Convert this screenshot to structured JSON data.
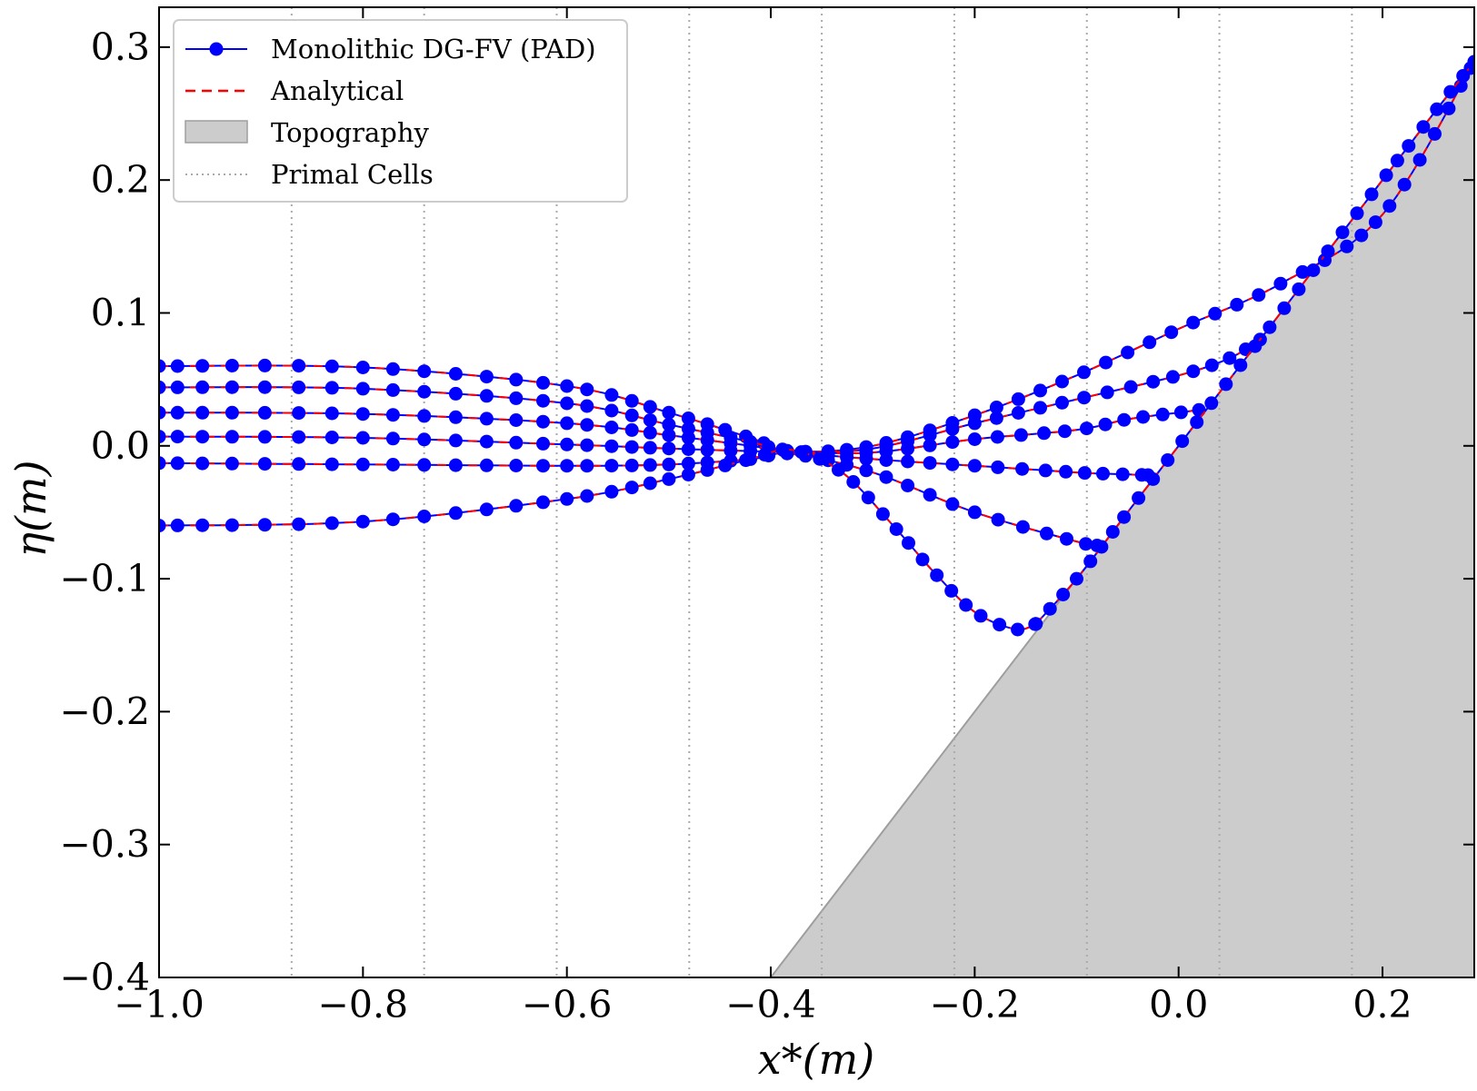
{
  "chart_data": {
    "type": "line",
    "xlabel": "x*(m)",
    "ylabel": "η(m)",
    "xlim": [
      -1.0,
      0.29
    ],
    "ylim": [
      -0.4,
      0.33
    ],
    "x_ticks": [
      -1.0,
      -0.8,
      -0.6,
      -0.4,
      -0.2,
      0.0,
      0.2
    ],
    "x_tick_labels": [
      "−1.0",
      "−0.8",
      "−0.6",
      "−0.4",
      "−0.2",
      "0.0",
      "0.2"
    ],
    "y_ticks": [
      -0.4,
      -0.3,
      -0.2,
      -0.1,
      0.0,
      0.1,
      0.2,
      0.3
    ],
    "y_tick_labels": [
      "−0.4",
      "−0.3",
      "−0.2",
      "−0.1",
      "0.0",
      "0.1",
      "0.2",
      "0.3"
    ],
    "legend": {
      "placement": "top-left",
      "entries": [
        {
          "label": "Monolithic DG-FV (PAD)",
          "style": "line-marker",
          "color": "#0000ff"
        },
        {
          "label": "Analytical",
          "style": "dashed",
          "color": "#ff0000"
        },
        {
          "label": "Topography",
          "style": "patch",
          "color": "#cccccc"
        },
        {
          "label": "Primal Cells",
          "style": "dotted",
          "color": "#aaaaaa"
        }
      ]
    },
    "primal_cells_x": [
      -0.87,
      -0.74,
      -0.61,
      -0.48,
      -0.35,
      -0.22,
      -0.09,
      0.04,
      0.17
    ],
    "topography": {
      "x": [
        -0.4,
        0.29
      ],
      "y": [
        -0.4,
        0.29
      ]
    },
    "series": [
      {
        "x": [
          -1.0,
          -0.8,
          -0.6,
          -0.5,
          -0.42,
          -0.38,
          -0.3,
          -0.2,
          -0.1,
          0.0,
          0.1,
          0.2,
          0.29
        ],
        "y": [
          0.06,
          0.059,
          0.045,
          0.025,
          0.006,
          -0.004,
          0.0,
          0.023,
          0.053,
          0.088,
          0.122,
          0.174,
          0.289
        ]
      },
      {
        "x": [
          -1.0,
          -0.8,
          -0.6,
          -0.5,
          -0.42,
          -0.38,
          -0.3,
          -0.2,
          -0.1,
          0.0,
          0.05,
          0.08
        ],
        "y": [
          0.044,
          0.043,
          0.032,
          0.016,
          0.003,
          -0.004,
          -0.002,
          0.017,
          0.035,
          0.053,
          0.066,
          0.08
        ]
      },
      {
        "x": [
          -1.0,
          -0.8,
          -0.6,
          -0.5,
          -0.42,
          -0.38,
          -0.3,
          -0.2,
          -0.1,
          -0.05,
          0.0,
          0.02
        ],
        "y": [
          0.025,
          0.024,
          0.017,
          0.008,
          0.0,
          -0.004,
          -0.005,
          0.005,
          0.012,
          0.02,
          0.025,
          0.027
        ]
      },
      {
        "x": [
          -1.0,
          -0.8,
          -0.6,
          -0.5,
          -0.42,
          -0.38,
          -0.3,
          -0.2,
          -0.1,
          -0.07,
          -0.03
        ],
        "y": [
          0.007,
          0.006,
          0.001,
          -0.002,
          -0.004,
          -0.005,
          -0.01,
          -0.015,
          -0.02,
          -0.021,
          -0.022
        ]
      },
      {
        "x": [
          -1.0,
          -0.8,
          -0.6,
          -0.5,
          -0.42,
          -0.38,
          -0.3,
          -0.2,
          -0.1,
          -0.085,
          -0.08
        ],
        "y": [
          -0.013,
          -0.014,
          -0.015,
          -0.014,
          -0.01,
          -0.006,
          -0.02,
          -0.05,
          -0.072,
          -0.074,
          -0.075
        ]
      },
      {
        "x": [
          -1.0,
          -0.8,
          -0.6,
          -0.5,
          -0.42,
          -0.38,
          -0.33,
          -0.28,
          -0.24,
          -0.2,
          -0.16,
          -0.14
        ],
        "y": [
          -0.06,
          -0.057,
          -0.04,
          -0.025,
          -0.01,
          -0.003,
          -0.02,
          -0.06,
          -0.095,
          -0.125,
          -0.138,
          -0.134
        ]
      },
      {
        "x": [
          -0.14,
          -0.1,
          -0.05,
          0.0,
          0.05,
          0.1,
          0.15,
          0.2,
          0.25,
          0.29
        ],
        "y": [
          -0.134,
          -0.1,
          -0.05,
          0.0,
          0.05,
          0.1,
          0.15,
          0.2,
          0.25,
          0.289
        ]
      }
    ]
  }
}
